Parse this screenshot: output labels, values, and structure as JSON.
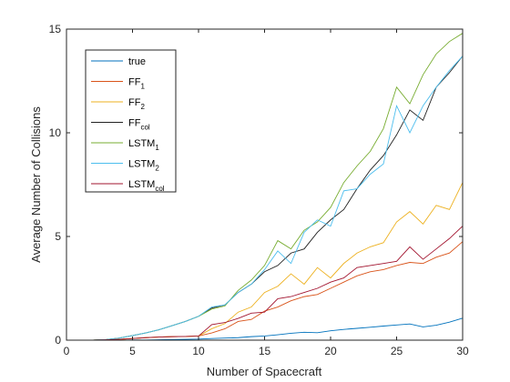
{
  "chart_data": {
    "type": "line",
    "xlabel": "Number of Spacecraft",
    "ylabel": "Average Number of Collisions",
    "xlim": [
      0,
      30
    ],
    "ylim": [
      0,
      15
    ],
    "xticks": [
      0,
      5,
      10,
      15,
      20,
      25,
      30
    ],
    "yticks": [
      0,
      5,
      10,
      15
    ],
    "grid": false,
    "legend_position": "top-left",
    "x": [
      1,
      2,
      3,
      4,
      5,
      6,
      7,
      8,
      9,
      10,
      11,
      12,
      13,
      14,
      15,
      16,
      17,
      18,
      19,
      20,
      21,
      22,
      23,
      24,
      25,
      26,
      27,
      28,
      29,
      30
    ],
    "series": [
      {
        "name": "true",
        "base": "true",
        "sub": "",
        "color": "#0072BD",
        "values": [
          0,
          0,
          0,
          0,
          0.01,
          0.01,
          0.02,
          0.03,
          0.04,
          0.05,
          0.08,
          0.1,
          0.12,
          0.17,
          0.2,
          0.26,
          0.33,
          0.38,
          0.36,
          0.45,
          0.52,
          0.57,
          0.62,
          0.68,
          0.73,
          0.78,
          0.64,
          0.72,
          0.87,
          1.06
        ]
      },
      {
        "name": "FF1",
        "base": "FF",
        "sub": "1",
        "color": "#D95319",
        "values": [
          0,
          0,
          0.02,
          0.04,
          0.08,
          0.12,
          0.15,
          0.17,
          0.18,
          0.2,
          0.35,
          0.55,
          0.9,
          1.0,
          1.4,
          1.6,
          1.9,
          2.1,
          2.2,
          2.5,
          2.8,
          3.1,
          3.3,
          3.4,
          3.6,
          3.75,
          3.7,
          4.0,
          4.2,
          4.75
        ]
      },
      {
        "name": "FF2",
        "base": "FF",
        "sub": "2",
        "color": "#EDB120",
        "values": [
          0,
          0,
          0.02,
          0.04,
          0.08,
          0.12,
          0.15,
          0.17,
          0.18,
          0.2,
          0.55,
          0.8,
          1.35,
          1.6,
          2.3,
          2.6,
          3.2,
          2.7,
          3.5,
          3.0,
          3.7,
          4.2,
          4.5,
          4.7,
          5.7,
          6.2,
          5.6,
          6.5,
          6.3,
          7.6
        ]
      },
      {
        "name": "FFcol",
        "base": "FF",
        "sub": "col",
        "color": "#222222",
        "values": [
          0,
          0,
          0.03,
          0.1,
          0.22,
          0.35,
          0.5,
          0.7,
          0.9,
          1.15,
          1.55,
          1.7,
          2.3,
          2.7,
          3.3,
          3.6,
          4.2,
          4.4,
          5.2,
          5.8,
          6.3,
          7.3,
          8.2,
          8.9,
          9.9,
          11.1,
          10.6,
          12.2,
          12.9,
          13.7
        ]
      },
      {
        "name": "LSTM1",
        "base": "LSTM",
        "sub": "1",
        "color": "#77AC30",
        "values": [
          0,
          0,
          0.03,
          0.1,
          0.22,
          0.35,
          0.5,
          0.7,
          0.9,
          1.15,
          1.5,
          1.65,
          2.4,
          2.9,
          3.6,
          4.8,
          4.4,
          5.3,
          5.7,
          6.4,
          7.6,
          8.4,
          9.1,
          10.2,
          12.2,
          11.4,
          12.8,
          13.8,
          14.4,
          14.8
        ]
      },
      {
        "name": "LSTM2",
        "base": "LSTM",
        "sub": "2",
        "color": "#4DBEEE",
        "values": [
          0,
          0,
          0.03,
          0.1,
          0.22,
          0.35,
          0.5,
          0.7,
          0.9,
          1.15,
          1.6,
          1.7,
          2.3,
          2.7,
          3.4,
          4.3,
          3.7,
          5.2,
          5.8,
          5.5,
          7.2,
          7.3,
          8.0,
          8.5,
          11.3,
          10.0,
          11.3,
          12.2,
          13.0,
          13.7
        ]
      },
      {
        "name": "LSTMcol",
        "base": "LSTM",
        "sub": "col",
        "color": "#A2142F",
        "values": [
          0,
          0,
          0.02,
          0.04,
          0.08,
          0.12,
          0.15,
          0.17,
          0.18,
          0.2,
          0.75,
          0.85,
          1.05,
          1.3,
          1.35,
          2.0,
          2.1,
          2.3,
          2.5,
          2.8,
          3.0,
          3.5,
          3.6,
          3.7,
          3.8,
          4.5,
          3.9,
          4.4,
          4.9,
          5.5
        ]
      }
    ]
  }
}
